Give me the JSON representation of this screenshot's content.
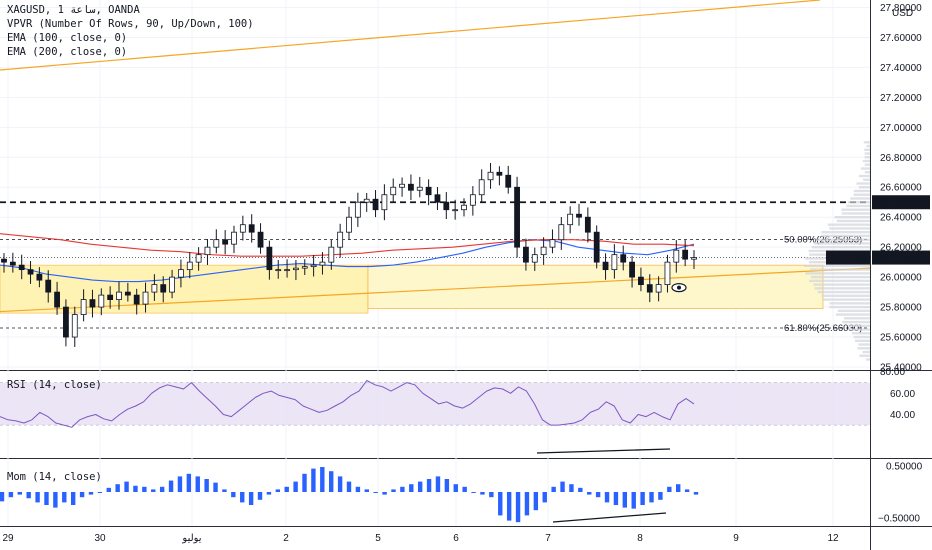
{
  "header": {
    "symbol_line": "XAGUSD, 1 ساعة, OANDA",
    "indicators": [
      "VPVR (Number Of Rows, 90, Up/Down, 100)",
      "EMA (100, close, 0)",
      "EMA (200, close, 0)"
    ]
  },
  "price_axis": {
    "currency": "USD",
    "ticks": [
      "27.80000",
      "27.60000",
      "27.40000",
      "27.20000",
      "27.00000",
      "26.80000",
      "26.60000",
      "26.40000",
      "26.20000",
      "26.00000",
      "25.80000",
      "25.60000",
      "25.40000"
    ],
    "tick_values": [
      27.8,
      27.6,
      27.4,
      27.2,
      27.0,
      26.8,
      26.6,
      26.4,
      26.2,
      26.0,
      25.8,
      25.6,
      25.4
    ],
    "level_label": "26.50000",
    "level_value": 26.5,
    "symbol_tag": "XAGUSD",
    "last_price_label": "26.13050",
    "last_price_value": 26.1305
  },
  "fib_levels": [
    {
      "label": "50.00%(26.25053)",
      "value": 26.25053
    },
    {
      "label": "61.80%(25.66030)",
      "value": 25.6603
    }
  ],
  "rsi": {
    "label": "RSI (14, close)",
    "ticks": [
      "60.00",
      "40.00"
    ],
    "tick_values": [
      60,
      40
    ],
    "top_label": "80.00",
    "band": [
      30,
      70
    ]
  },
  "momentum": {
    "label": "Mom (14, close)",
    "ticks": [
      "0.50000",
      "−0.50000"
    ],
    "tick_values": [
      0.5,
      -0.5
    ]
  },
  "time_axis": {
    "labels": [
      "29",
      "30",
      "يوليو",
      "2",
      "5",
      "6",
      "7",
      "8",
      "9",
      "12"
    ]
  },
  "colors": {
    "up": "#26a69a",
    "down": "#ef5350",
    "candle": "#131722",
    "ema100": "#2962ff",
    "ema200": "#e53935",
    "trendline": "#f5a623",
    "rsi_line": "#7e57c2",
    "rsi_band": "#e6dcf3",
    "mom": "#2962ff",
    "zone": "#fff2a8"
  },
  "chart_data": {
    "type": "candlestick",
    "title": "XAGUSD, 1 ساعة, OANDA",
    "y_range": [
      25.38,
      27.85
    ],
    "price_close_series": [
      26.1,
      26.08,
      26.05,
      26.02,
      25.98,
      25.9,
      25.8,
      25.6,
      25.75,
      25.85,
      25.8,
      25.88,
      25.85,
      25.9,
      25.88,
      25.82,
      25.9,
      25.95,
      25.9,
      26.0,
      26.05,
      26.1,
      26.15,
      26.2,
      26.25,
      26.22,
      26.3,
      26.35,
      26.3,
      26.2,
      26.05,
      26.05,
      26.05,
      26.06,
      26.07,
      26.08,
      26.1,
      26.2,
      26.3,
      26.4,
      26.5,
      26.52,
      26.45,
      26.55,
      26.6,
      26.62,
      26.58,
      26.6,
      26.55,
      26.5,
      26.45,
      26.45,
      26.48,
      26.55,
      26.65,
      26.7,
      26.68,
      26.6,
      26.2,
      26.1,
      26.15,
      26.2,
      26.25,
      26.35,
      26.42,
      26.4,
      26.3,
      26.1,
      26.05,
      26.15,
      26.1,
      26.0,
      25.95,
      25.9,
      25.95,
      26.1,
      26.18,
      26.12,
      26.1305
    ],
    "ema100": [
      26.08,
      26.06,
      26.02,
      26.0,
      25.98,
      25.97,
      25.97,
      25.98,
      26.0,
      26.02,
      26.04,
      26.06,
      26.08,
      26.09,
      26.08,
      26.07,
      26.07,
      26.08,
      26.1,
      26.13,
      26.16,
      26.2,
      26.23,
      26.25,
      26.24,
      26.2,
      26.18,
      26.16,
      26.15,
      26.18,
      26.22
    ],
    "ema200": [
      26.29,
      26.27,
      26.25,
      26.22,
      26.2,
      26.18,
      26.17,
      26.15,
      26.14,
      26.14,
      26.14,
      26.15,
      26.16,
      26.18,
      26.19,
      26.2,
      26.22,
      26.24,
      26.25,
      26.25,
      26.24,
      26.22,
      26.22,
      26.21
    ],
    "rsi_series": [
      38,
      35,
      34,
      32,
      35,
      42,
      38,
      32,
      30,
      28,
      35,
      38,
      40,
      36,
      34,
      40,
      45,
      48,
      52,
      60,
      65,
      68,
      66,
      64,
      70,
      62,
      55,
      48,
      40,
      38,
      44,
      50,
      56,
      60,
      62,
      58,
      56,
      54,
      48,
      45,
      42,
      44,
      48,
      52,
      58,
      62,
      72,
      68,
      66,
      62,
      66,
      70,
      68,
      60,
      55,
      50,
      52,
      48,
      46,
      50,
      56,
      62,
      65,
      64,
      60,
      66,
      62,
      50,
      35,
      30,
      30,
      31,
      32,
      35,
      42,
      45,
      52,
      48,
      35,
      32,
      40,
      38,
      42,
      38,
      35,
      50,
      55,
      50
    ],
    "mom_series": [
      -0.18,
      -0.1,
      -0.05,
      -0.12,
      -0.2,
      -0.25,
      -0.3,
      -0.2,
      -0.25,
      -0.1,
      -0.05,
      0.0,
      0.08,
      0.15,
      0.2,
      0.12,
      0.1,
      0.05,
      0.1,
      0.22,
      0.3,
      0.35,
      0.3,
      0.25,
      0.18,
      0.05,
      -0.1,
      -0.2,
      -0.25,
      -0.15,
      -0.05,
      0.05,
      0.1,
      0.2,
      0.35,
      0.45,
      0.48,
      0.4,
      0.3,
      0.2,
      0.1,
      0.05,
      0.0,
      -0.05,
      0.05,
      0.1,
      0.15,
      0.2,
      0.25,
      0.3,
      0.25,
      0.15,
      0.1,
      0.0,
      -0.05,
      -0.1,
      -0.45,
      -0.55,
      -0.58,
      -0.45,
      -0.35,
      -0.2,
      0.1,
      0.2,
      0.15,
      0.08,
      -0.05,
      -0.1,
      -0.2,
      -0.25,
      -0.3,
      -0.32,
      -0.25,
      -0.2,
      -0.15,
      0.1,
      0.15,
      0.05,
      -0.05
    ]
  }
}
